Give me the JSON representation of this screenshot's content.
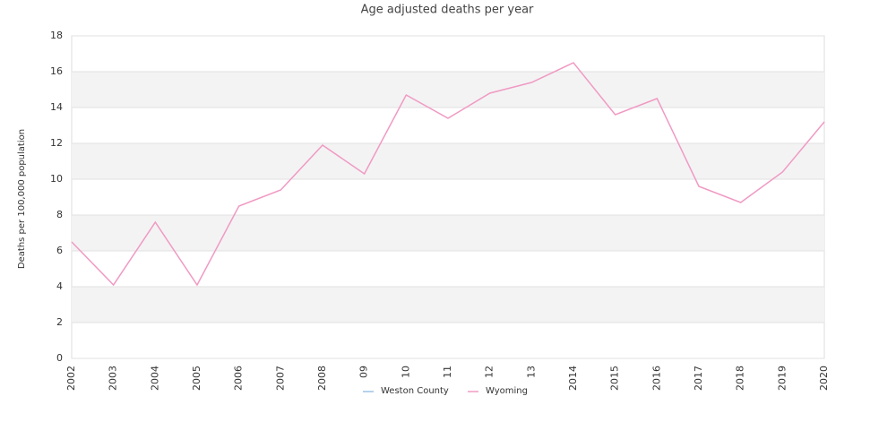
{
  "chart_data": {
    "type": "line",
    "title": "Age adjusted deaths per year",
    "ylabel": "Deaths per 100,000 population",
    "categories": [
      "2002",
      "2003",
      "2004",
      "2005",
      "2006",
      "2007",
      "2008",
      "09",
      "10",
      "11",
      "12",
      "13",
      "2014",
      "2015",
      "2016",
      "2017",
      "2018",
      "2019",
      "2020"
    ],
    "series": [
      {
        "name": "Weston County",
        "color": "#9dc3e6",
        "values": [
          null,
          null,
          null,
          null,
          null,
          null,
          null,
          null,
          null,
          null,
          null,
          null,
          null,
          null,
          null,
          null,
          null,
          null,
          null
        ]
      },
      {
        "name": "Wyoming",
        "color": "#f09ac4",
        "values": [
          6.5,
          4.1,
          7.6,
          4.1,
          8.5,
          9.4,
          11.9,
          10.3,
          14.7,
          13.4,
          14.8,
          15.4,
          16.5,
          13.6,
          14.5,
          9.6,
          8.7,
          10.4,
          13.2
        ]
      }
    ],
    "ylim": [
      0,
      18
    ],
    "yticks": [
      0,
      2,
      4,
      6,
      8,
      10,
      12,
      14,
      16,
      18
    ],
    "grid": true,
    "legend": "bottom"
  }
}
